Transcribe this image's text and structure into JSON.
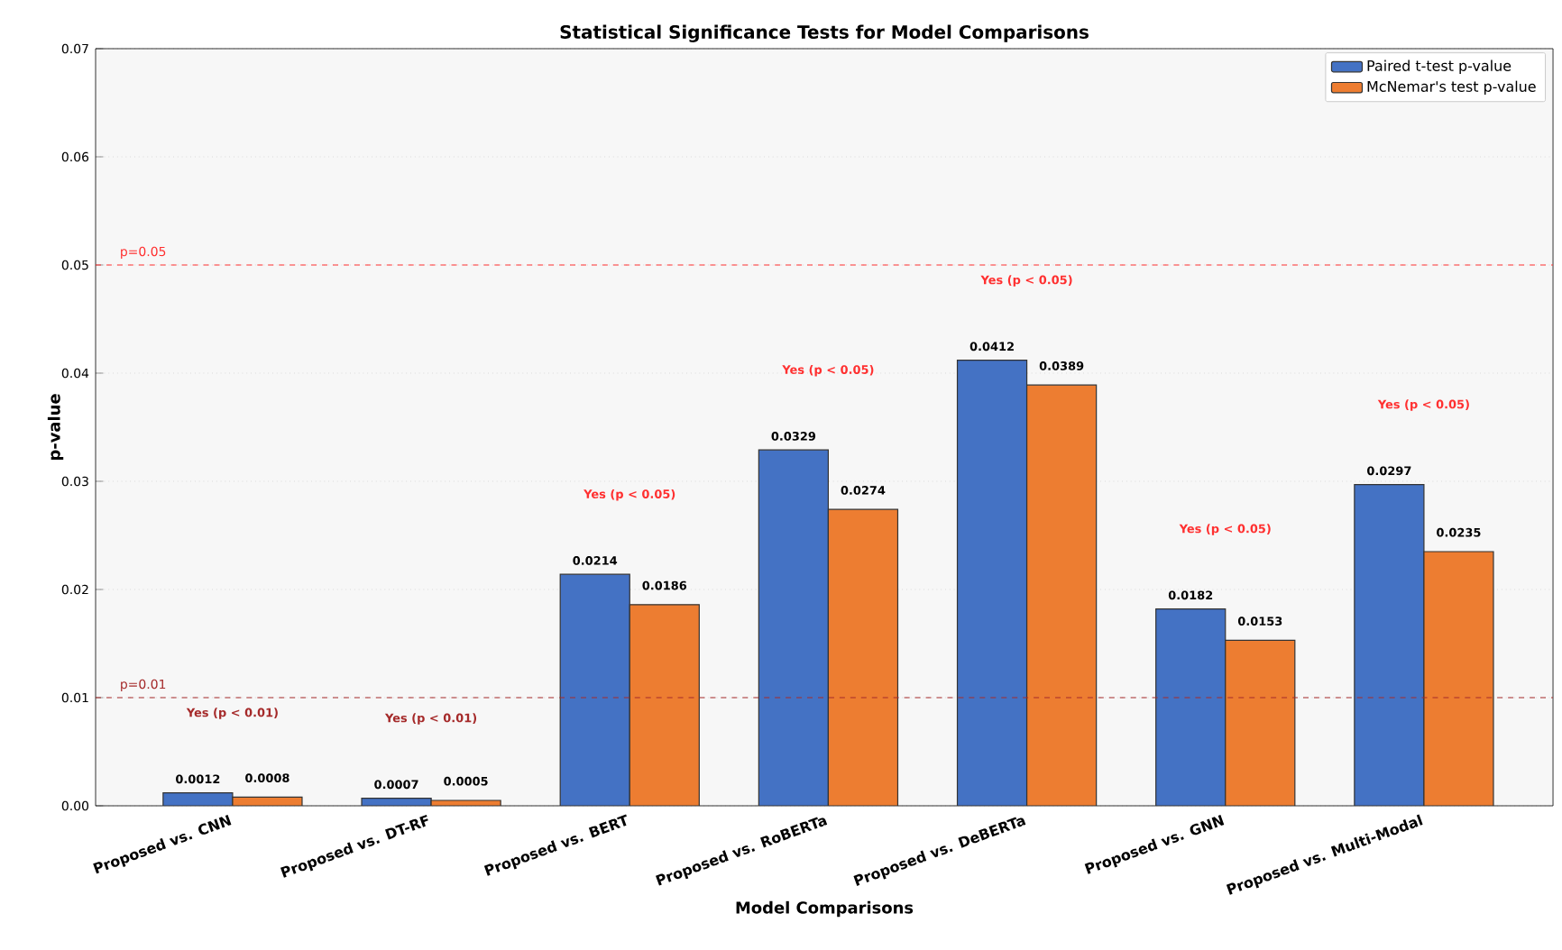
{
  "chart_data": {
    "type": "bar",
    "title": "Statistical Significance Tests for Model Comparisons",
    "xlabel": "Model Comparisons",
    "ylabel": "p-value",
    "categories": [
      "Proposed vs. CNN",
      "Proposed vs. DT-RF",
      "Proposed vs. BERT",
      "Proposed vs. RoBERTa",
      "Proposed vs. DeBERTa",
      "Proposed vs. GNN",
      "Proposed vs. Multi-Modal"
    ],
    "series": [
      {
        "name": "Paired t-test p-value",
        "color": "#4472c4",
        "values": [
          0.0012,
          0.0007,
          0.0214,
          0.0329,
          0.0412,
          0.0182,
          0.0297
        ]
      },
      {
        "name": "McNemar's test p-value",
        "color": "#ed7d31",
        "values": [
          0.0008,
          0.0005,
          0.0186,
          0.0274,
          0.0389,
          0.0153,
          0.0235
        ]
      }
    ],
    "data_labels": true,
    "ylim": [
      0,
      0.07
    ],
    "yticks": [
      {
        "value": 0,
        "label": "0.00"
      },
      {
        "value": 0.01,
        "label": "0.01"
      },
      {
        "value": 0.02,
        "label": "0.02"
      },
      {
        "value": 0.03,
        "label": "0.03"
      },
      {
        "value": 0.04,
        "label": "0.04"
      },
      {
        "value": 0.05,
        "label": "0.05"
      },
      {
        "value": 0.06,
        "label": "0.06"
      },
      {
        "value": 0.07,
        "label": "0.07"
      }
    ],
    "grid": "y",
    "legend": "top right",
    "ref_lines": [
      {
        "axis": "y",
        "value": 0.05,
        "label": "p=0.05",
        "color": "#ff3030",
        "line_style": "dashed"
      },
      {
        "axis": "y",
        "value": 0.01,
        "label": "p=0.01",
        "color": "#a52a2a",
        "line_style": "dashed"
      }
    ],
    "annotations": [
      "Yes (p < 0.01)",
      "Yes (p < 0.01)",
      "Yes (p < 0.05)",
      "Yes (p < 0.05)",
      "Yes (p < 0.05)",
      "Yes (p < 0.05)",
      "Yes (p < 0.05)"
    ]
  }
}
